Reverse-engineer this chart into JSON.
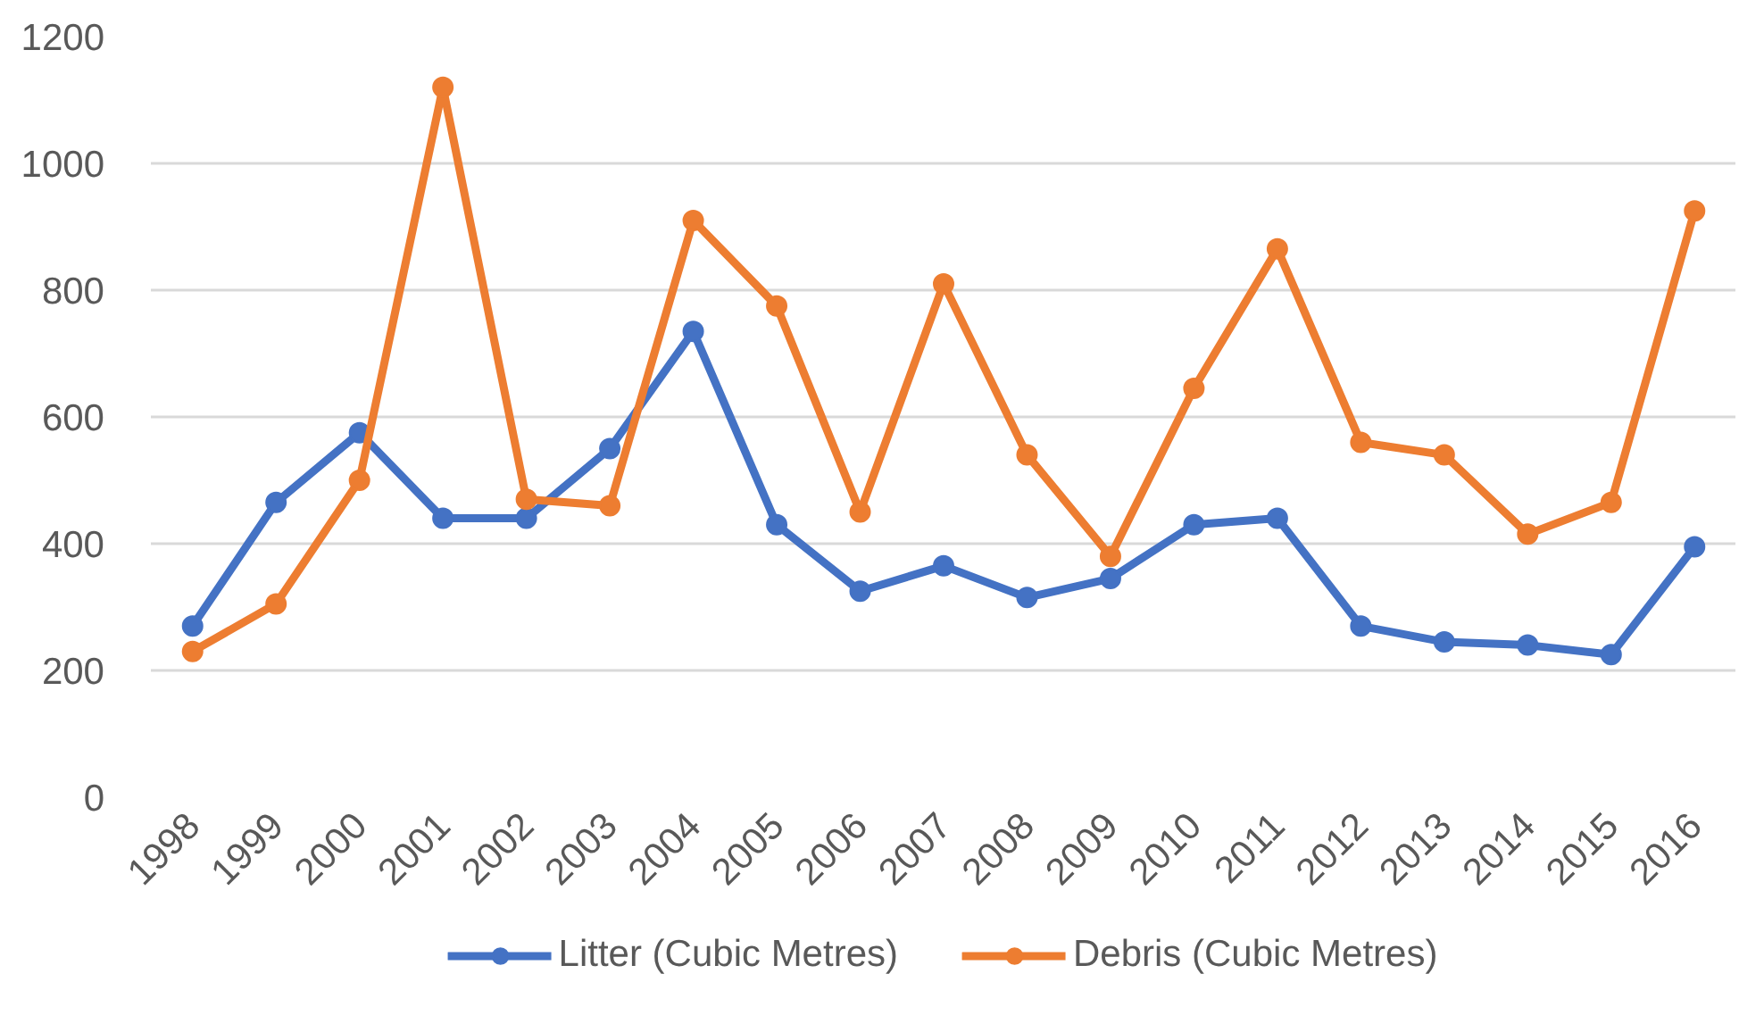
{
  "chart_data": {
    "type": "line",
    "categories": [
      "1998",
      "1999",
      "2000",
      "2001",
      "2002",
      "2003",
      "2004",
      "2005",
      "2006",
      "2007",
      "2008",
      "2009",
      "2010",
      "2011",
      "2012",
      "2013",
      "2014",
      "2015",
      "2016"
    ],
    "series": [
      {
        "name": "Litter (Cubic Metres)",
        "color": "#4472c4",
        "values": [
          270,
          465,
          575,
          440,
          440,
          550,
          735,
          430,
          325,
          365,
          315,
          345,
          430,
          440,
          270,
          245,
          240,
          225,
          395
        ]
      },
      {
        "name": "Debris (Cubic Metres)",
        "color": "#ed7d31",
        "values": [
          230,
          305,
          500,
          1120,
          470,
          460,
          910,
          775,
          450,
          810,
          540,
          380,
          645,
          865,
          560,
          540,
          415,
          465,
          925
        ]
      }
    ],
    "ylim": [
      0,
      1200
    ],
    "yticks": [
      0,
      200,
      400,
      600,
      800,
      1000,
      1200
    ],
    "grid": "y",
    "legend": "bottom",
    "marker": "circle",
    "line_style": "solid"
  }
}
